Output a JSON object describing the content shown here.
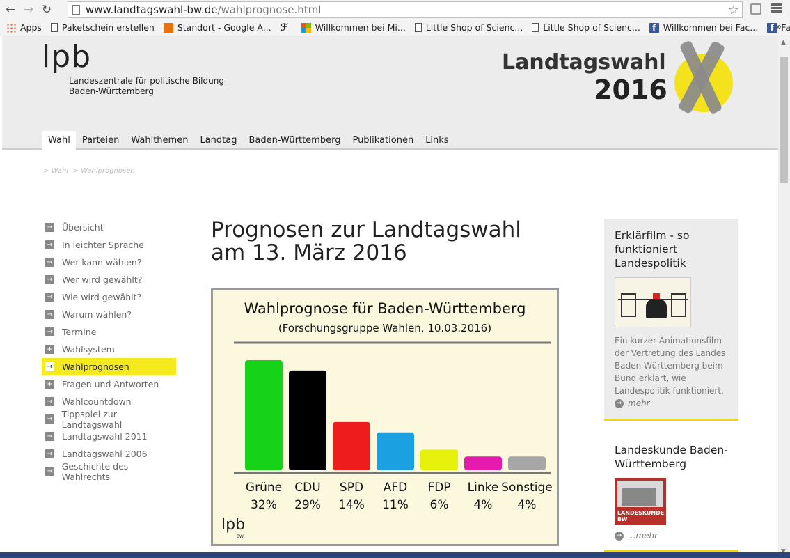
{
  "browser": {
    "url_domain": "www.landtagswahl-bw.de",
    "url_path": "/wahlprognose.html",
    "bookmarks": [
      {
        "label": "Apps",
        "icon": "apps-grid-icon"
      },
      {
        "label": "Paketschein erstellen",
        "icon": "document-icon"
      },
      {
        "label": "Standort - Google A...",
        "icon": "chart-icon"
      },
      {
        "label": "",
        "icon": "faz-icon"
      },
      {
        "label": "Willkommen bei Mi...",
        "icon": "microsoft-icon"
      },
      {
        "label": "Little Shop of Scienc...",
        "icon": "document-icon"
      },
      {
        "label": "Little Shop of Scienc...",
        "icon": "document-icon"
      },
      {
        "label": "Willkommen bei Fac...",
        "icon": "facebook-icon"
      },
      {
        "label": "Facebook",
        "icon": "facebook-icon"
      }
    ],
    "more": "»"
  },
  "header": {
    "logo_text": "lpb",
    "org_line1": "Landeszentrale für politische Bildung",
    "org_line2": "Baden-Württemberg",
    "event_title": "Landtagswahl",
    "event_year": "2016"
  },
  "mainnav": [
    "Wahl",
    "Parteien",
    "Wahlthemen",
    "Landtag",
    "Baden-Württemberg",
    "Publikationen",
    "Links"
  ],
  "breadcrumb": {
    "item1": "> Wahl",
    "item2": "> Wahlprognosen"
  },
  "subnav": [
    {
      "label": "Übersicht",
      "icon": "arrow-icon"
    },
    {
      "label": "In leichter Sprache",
      "icon": "arrow-icon"
    },
    {
      "label": "Wer kann wählen?",
      "icon": "arrow-icon"
    },
    {
      "label": "Wer wird gewählt?",
      "icon": "arrow-icon"
    },
    {
      "label": "Wie wird gewählt?",
      "icon": "arrow-icon"
    },
    {
      "label": "Warum wählen?",
      "icon": "arrow-icon"
    },
    {
      "label": "Termine",
      "icon": "arrow-icon"
    },
    {
      "label": "Wahlsystem",
      "icon": "plus-icon"
    },
    {
      "label": "Wahlprognosen",
      "icon": "arrow-icon"
    },
    {
      "label": "Fragen und Antworten",
      "icon": "plus-icon"
    },
    {
      "label": "Wahlcountdown",
      "icon": "arrow-icon"
    },
    {
      "label": "Tippspiel zur Landtagswahl",
      "icon": "arrow-icon"
    },
    {
      "label": "Landtagswahl 2011",
      "icon": "arrow-icon"
    },
    {
      "label": "Landtagswahl 2006",
      "icon": "arrow-icon"
    },
    {
      "label": "Geschichte des Wahlrechts",
      "icon": "arrow-icon"
    }
  ],
  "subnav_active": 8,
  "page_title_line1": "Prognosen zur Landtagswahl",
  "page_title_line2": "am 13. März 2016",
  "chart_data": {
    "type": "bar",
    "title": "Wahlprognose für Baden-Württemberg",
    "subtitle": "(Forschungsgruppe Wahlen, 10.03.2016)",
    "categories": [
      "Grüne",
      "CDU",
      "SPD",
      "AFD",
      "FDP",
      "Linke",
      "Sonstige"
    ],
    "values": [
      32,
      29,
      14,
      11,
      6,
      4,
      4
    ],
    "value_labels": [
      "32%",
      "29%",
      "14%",
      "11%",
      "6%",
      "4%",
      "4%"
    ],
    "colors": [
      "#16d31a",
      "#000000",
      "#ee1c1c",
      "#1ba1e2",
      "#e6f20c",
      "#e51aae",
      "#a6a6a6"
    ],
    "ylim": [
      0,
      32
    ],
    "logo": "lpb",
    "logo_sub": "BW"
  },
  "sidebar": {
    "card1_title": "Erklärfilm - so funktioniert Landespolitik",
    "card1_text": "Ein kurzer Animationsfilm der Vertretung des Landes Baden-Württemberg beim Bund erklärt, wie Landespolitik funktioniert.",
    "card1_more": "mehr",
    "card2_title": "Landeskunde Baden-Württemberg",
    "card2_thumb_text": "LANDESKUNDE BW",
    "card2_more": "...mehr"
  }
}
